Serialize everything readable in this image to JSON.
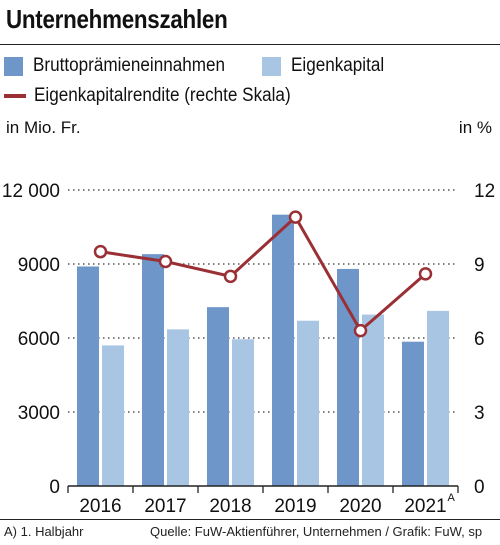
{
  "title": "Unternehmenszahlen",
  "legend": {
    "bar1": "Bruttoprämieneinnahmen",
    "bar2": "Eigenkapital",
    "line": "Eigenkapitalrendite (rechte Skala)"
  },
  "units": {
    "left": "in Mio. Fr.",
    "right": "in %"
  },
  "footer": {
    "note": "A) 1. Halbjahr",
    "source": "Quelle: FuW-Aktienführer, Unternehmen / Grafik: FuW, sp"
  },
  "colors": {
    "bar1": "#6f96c9",
    "bar2": "#a8c6e3",
    "line": "#9a3035"
  },
  "chart_data": {
    "type": "bar",
    "categories": [
      "2016",
      "2017",
      "2018",
      "2019",
      "2020",
      "2021"
    ],
    "category_superscripts": [
      "",
      "",
      "",
      "",
      "",
      "A"
    ],
    "series": [
      {
        "name": "Bruttoprämieneinnahmen",
        "values": [
          8900,
          9400,
          7250,
          11000,
          8800,
          5850
        ]
      },
      {
        "name": "Eigenkapital",
        "values": [
          5700,
          6350,
          5950,
          6700,
          6950,
          7100
        ]
      },
      {
        "name": "Eigenkapitalrendite (rechte Skala)",
        "type": "line",
        "axis": "right",
        "values": [
          9.5,
          9.1,
          8.5,
          10.9,
          6.3,
          8.6
        ]
      }
    ],
    "y_left": {
      "ylim": [
        0,
        12000
      ],
      "ticks": [
        0,
        3000,
        6000,
        9000,
        12000
      ],
      "tick_labels": [
        "0",
        "3000",
        "6000",
        "9000",
        "12 000"
      ]
    },
    "y_right": {
      "ylim": [
        0,
        12
      ],
      "ticks": [
        0,
        3,
        6,
        9,
        12
      ],
      "tick_labels": [
        "0",
        "3",
        "6",
        "9",
        "12"
      ]
    },
    "grid": "dotted horizontal"
  }
}
